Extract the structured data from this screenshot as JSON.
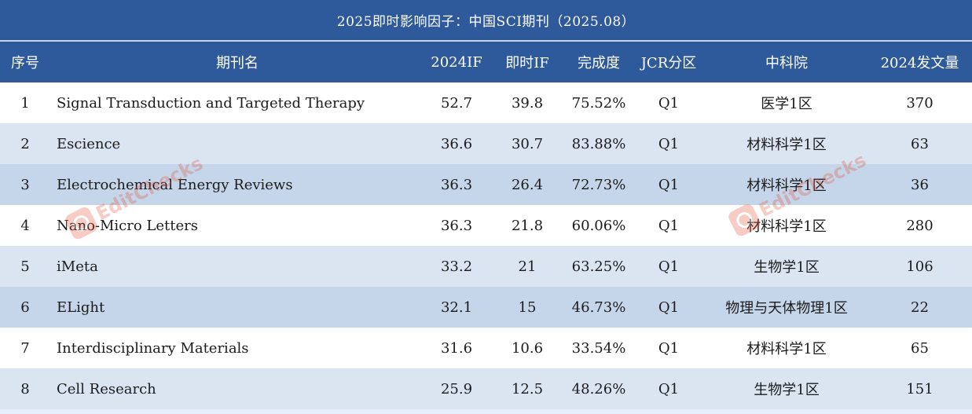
{
  "title": "2025即时影响因子：中国SCI期刊（2025.08）",
  "columns": [
    "序号",
    "期刊名",
    "2024IF",
    "即时IF",
    "完成度",
    "JCR分区",
    "中科院",
    "2024发文量"
  ],
  "rows": [
    {
      "idx": "1",
      "name": "Signal Transduction and Targeted Therapy",
      "if2024": "52.7",
      "if_now": "39.8",
      "completion": "75.52%",
      "jcr": "Q1",
      "cas": "医学1区",
      "count": "370"
    },
    {
      "idx": "2",
      "name": "Escience",
      "if2024": "36.6",
      "if_now": "30.7",
      "completion": "83.88%",
      "jcr": "Q1",
      "cas": "材料科学1区",
      "count": "63"
    },
    {
      "idx": "3",
      "name": "Electrochemical Energy Reviews",
      "if2024": "36.3",
      "if_now": "26.4",
      "completion": "72.73%",
      "jcr": "Q1",
      "cas": "材料科学1区",
      "count": "36"
    },
    {
      "idx": "4",
      "name": "Nano-Micro Letters",
      "if2024": "36.3",
      "if_now": "21.8",
      "completion": "60.06%",
      "jcr": "Q1",
      "cas": "材料科学1区",
      "count": "280"
    },
    {
      "idx": "5",
      "name": "iMeta",
      "if2024": "33.2",
      "if_now": "21",
      "completion": "63.25%",
      "jcr": "Q1",
      "cas": "生物学1区",
      "count": "106"
    },
    {
      "idx": "6",
      "name": "ELight",
      "if2024": "32.1",
      "if_now": "15",
      "completion": "46.73%",
      "jcr": "Q1",
      "cas": "物理与天体物理1区",
      "count": "22"
    },
    {
      "idx": "7",
      "name": "Interdisciplinary Materials",
      "if2024": "31.6",
      "if_now": "10.6",
      "completion": "33.54%",
      "jcr": "Q1",
      "cas": "材料科学1区",
      "count": "65"
    },
    {
      "idx": "8",
      "name": "Cell Research",
      "if2024": "25.9",
      "if_now": "12.5",
      "completion": "48.26%",
      "jcr": "Q1",
      "cas": "生物学1区",
      "count": "151"
    }
  ],
  "watermark": {
    "text": "EditChecks",
    "icon": "editchecks-logo-icon"
  },
  "colors": {
    "header_bg": "#2e5a9c",
    "row_alt_bg": "#dbe5f2",
    "row_highlight_bg": "#c6d6ea",
    "watermark": "#e24a2f"
  }
}
